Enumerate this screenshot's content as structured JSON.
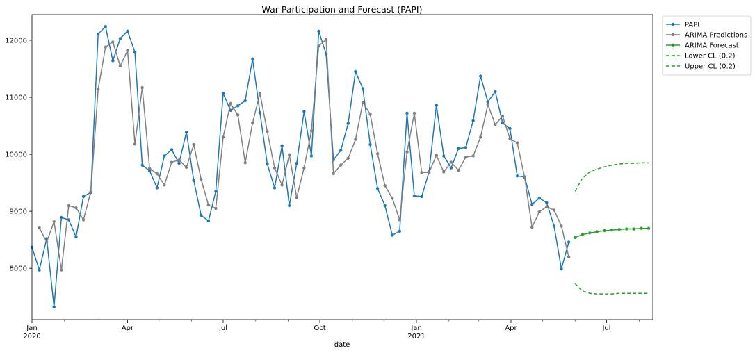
{
  "chart_data": {
    "type": "line",
    "title": "War Participation and Forecast (PAPI)",
    "xlabel": "date",
    "ylabel": "",
    "ylim": [
      7100,
      12450
    ],
    "xlim": [
      "2020-01-01",
      "2021-08-14"
    ],
    "x_ticks": [
      {
        "date": "2020-01-01",
        "label": "Jan",
        "sub": "2020"
      },
      {
        "date": "2020-04-01",
        "label": "Apr",
        "sub": ""
      },
      {
        "date": "2020-07-01",
        "label": "Jul",
        "sub": ""
      },
      {
        "date": "2020-10-01",
        "label": "Oct",
        "sub": ""
      },
      {
        "date": "2021-01-01",
        "label": "Jan",
        "sub": "2021"
      },
      {
        "date": "2021-04-01",
        "label": "Apr",
        "sub": ""
      },
      {
        "date": "2021-07-01",
        "label": "Jul",
        "sub": ""
      }
    ],
    "y_ticks": [
      8000,
      9000,
      10000,
      11000,
      12000
    ],
    "legend_position": "outside-top-right",
    "grid": false,
    "colors": {
      "papi": "#1f77b4",
      "predictions": "#808080",
      "forecast": "#2ca02c",
      "ci": "#2ca02c"
    },
    "series": [
      {
        "name": "PAPI",
        "key": "papi",
        "style": "line-marker",
        "start": "2020-01-01",
        "step_days": 7,
        "values": [
          8370,
          7970,
          8520,
          7320,
          8890,
          8850,
          8550,
          9260,
          9330,
          12110,
          12240,
          11640,
          12030,
          12160,
          11790,
          9810,
          9710,
          9410,
          9970,
          10080,
          9840,
          10390,
          9540,
          8930,
          8830,
          9350,
          11070,
          10770,
          10850,
          10940,
          11670,
          10730,
          9830,
          9410,
          10150,
          9100,
          9840,
          10750,
          9970,
          12160,
          11760,
          9900,
          10070,
          10540,
          11450,
          11150,
          10170,
          9400,
          9100,
          8580,
          8650,
          10720,
          9270,
          9260,
          9690,
          10860,
          9970,
          9760,
          10100,
          10120,
          10590,
          11370,
          10920,
          11100,
          10550,
          10450,
          9620,
          9600,
          9120,
          9230,
          9150,
          8740,
          7990,
          8460
        ]
      },
      {
        "name": "ARIMA Predictions",
        "key": "predictions",
        "style": "line-marker",
        "start": "2020-01-08",
        "step_days": 7,
        "values": [
          8710,
          8460,
          8820,
          7970,
          9100,
          9060,
          8850,
          9340,
          11140,
          11880,
          11970,
          11550,
          11820,
          10180,
          11170,
          9750,
          9660,
          9460,
          9860,
          9900,
          9770,
          10170,
          9560,
          9110,
          9050,
          10300,
          10890,
          10690,
          9850,
          10550,
          11070,
          10400,
          9760,
          9460,
          9990,
          9240,
          9760,
          10410,
          11900,
          12010,
          9660,
          9810,
          9930,
          10260,
          10910,
          10700,
          10010,
          9450,
          9230,
          8850,
          10040,
          10720,
          9680,
          9680,
          9980,
          9690,
          9860,
          9720,
          9950,
          9970,
          10300,
          10870,
          10520,
          10670,
          10270,
          10200,
          9590,
          8720,
          8990,
          9080,
          9020,
          8740,
          8200
        ]
      },
      {
        "name": "ARIMA Forecast",
        "key": "forecast",
        "style": "line-marker",
        "start": "2021-06-01",
        "step_days": 7,
        "values": [
          8540,
          8590,
          8620,
          8640,
          8660,
          8670,
          8680,
          8690,
          8690,
          8700,
          8700
        ]
      },
      {
        "name": "Lower CL (0.2)",
        "key": "ci",
        "style": "dashed",
        "start": "2021-06-01",
        "step_days": 7,
        "values": [
          7730,
          7600,
          7560,
          7550,
          7550,
          7550,
          7560,
          7560,
          7560,
          7560,
          7560
        ]
      },
      {
        "name": "Upper CL (0.2)",
        "key": "ci",
        "style": "dashed",
        "start": "2021-06-01",
        "step_days": 7,
        "values": [
          9350,
          9580,
          9690,
          9740,
          9780,
          9810,
          9830,
          9840,
          9840,
          9850,
          9850
        ]
      }
    ]
  }
}
